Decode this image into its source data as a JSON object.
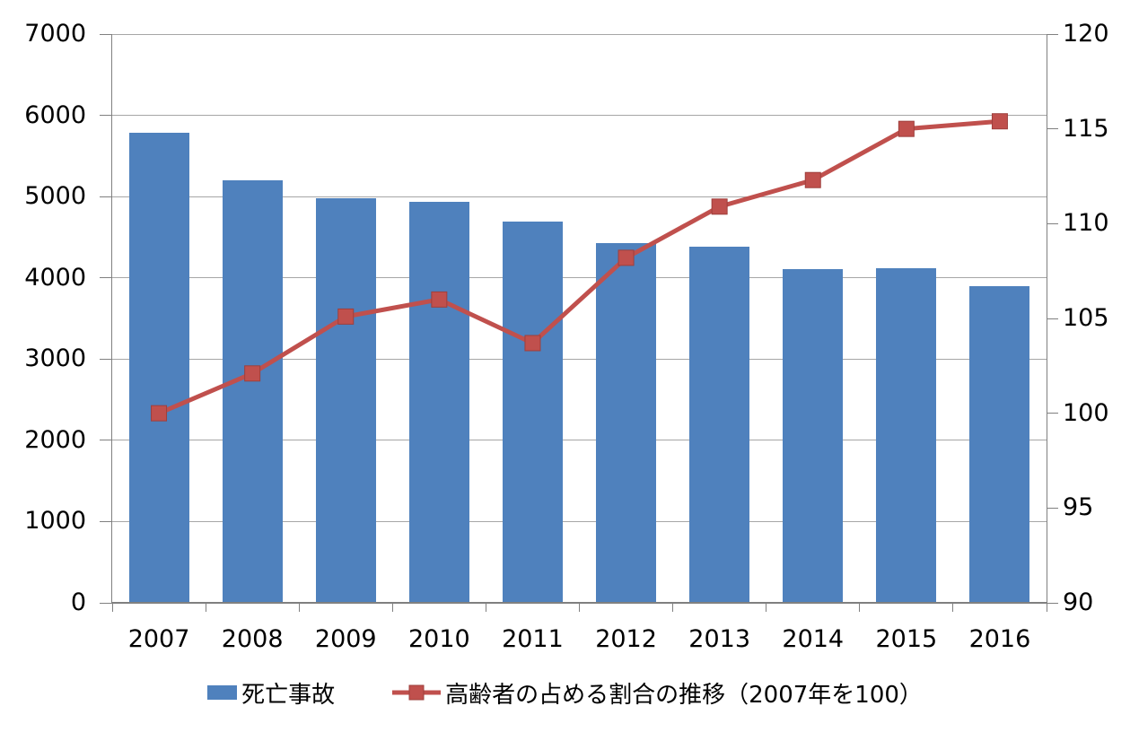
{
  "chart_data": {
    "type": "combo-bar-line",
    "categories": [
      "2007",
      "2008",
      "2009",
      "2010",
      "2011",
      "2012",
      "2013",
      "2014",
      "2015",
      "2016"
    ],
    "series": [
      {
        "name": "死亡事故",
        "type": "bar",
        "axis": "left",
        "values": [
          5780,
          5200,
          4980,
          4940,
          4690,
          4430,
          4380,
          4110,
          4120,
          3900
        ]
      },
      {
        "name": "高齢者の占める割合の推移（2007年を100）",
        "type": "line",
        "axis": "right",
        "marker": "square",
        "values": [
          100,
          102.1,
          105.1,
          106,
          103.7,
          108.2,
          110.9,
          112.3,
          115,
          115.4
        ]
      }
    ],
    "left_axis": {
      "min": 0,
      "max": 7000,
      "step": 1000,
      "tick_labels": [
        "0",
        "1000",
        "2000",
        "3000",
        "4000",
        "5000",
        "6000",
        "7000"
      ]
    },
    "right_axis": {
      "min": 90,
      "max": 120,
      "step": 5,
      "tick_labels": [
        "90",
        "95",
        "100",
        "105",
        "110",
        "115",
        "120"
      ]
    },
    "grid": true,
    "legend_position": "bottom",
    "colors": {
      "bar": "#4F81BD",
      "line": "#C0504D",
      "marker_border": "#9E3F3C",
      "gridline": "#A6A6A6",
      "axis": "#808080",
      "text": "#000000",
      "background": "#FFFFFF"
    }
  }
}
